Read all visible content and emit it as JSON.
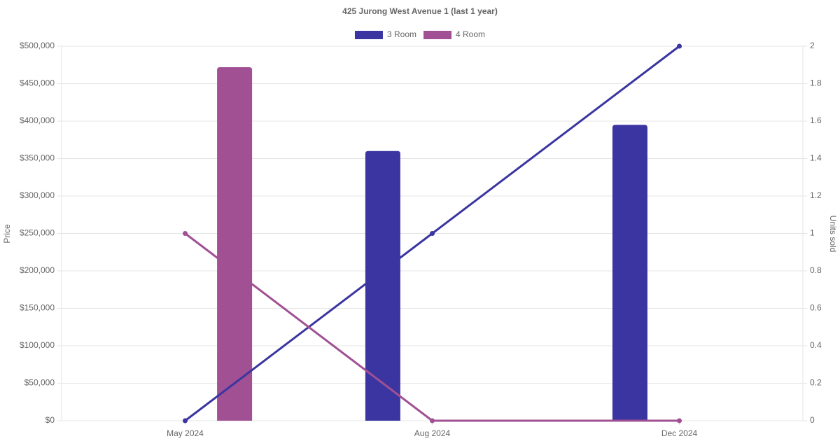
{
  "chart_data": {
    "type": "bar",
    "title": "425 Jurong West Avenue 1 (last 1 year)",
    "categories": [
      "May 2024",
      "Aug 2024",
      "Dec 2024"
    ],
    "y_label": "Price",
    "y2_label": "Units sold",
    "series": [
      {
        "name": "3 Room",
        "color": "#3a35a0",
        "values": [
          null,
          360000,
          395000
        ],
        "units": [
          0,
          1,
          2
        ]
      },
      {
        "name": "4 Room",
        "color": "#a05093",
        "values": [
          472000,
          null,
          null
        ],
        "units": [
          1,
          0,
          0
        ]
      }
    ],
    "ylim": [
      0,
      500000
    ],
    "yticks": [
      {
        "value": 0,
        "label": "$0"
      },
      {
        "value": 50000,
        "label": "$50,000"
      },
      {
        "value": 100000,
        "label": "$100,000"
      },
      {
        "value": 150000,
        "label": "$150,000"
      },
      {
        "value": 200000,
        "label": "$200,000"
      },
      {
        "value": 250000,
        "label": "$250,000"
      },
      {
        "value": 300000,
        "label": "$300,000"
      },
      {
        "value": 350000,
        "label": "$350,000"
      },
      {
        "value": 400000,
        "label": "$400,000"
      },
      {
        "value": 450000,
        "label": "$450,000"
      },
      {
        "value": 500000,
        "label": "$500,000"
      }
    ],
    "y2lim": [
      0,
      2
    ],
    "y2ticks": [
      0,
      0.2,
      0.4,
      0.6,
      0.8,
      1,
      1.2,
      1.4,
      1.6,
      1.8,
      2
    ],
    "grid": true
  }
}
